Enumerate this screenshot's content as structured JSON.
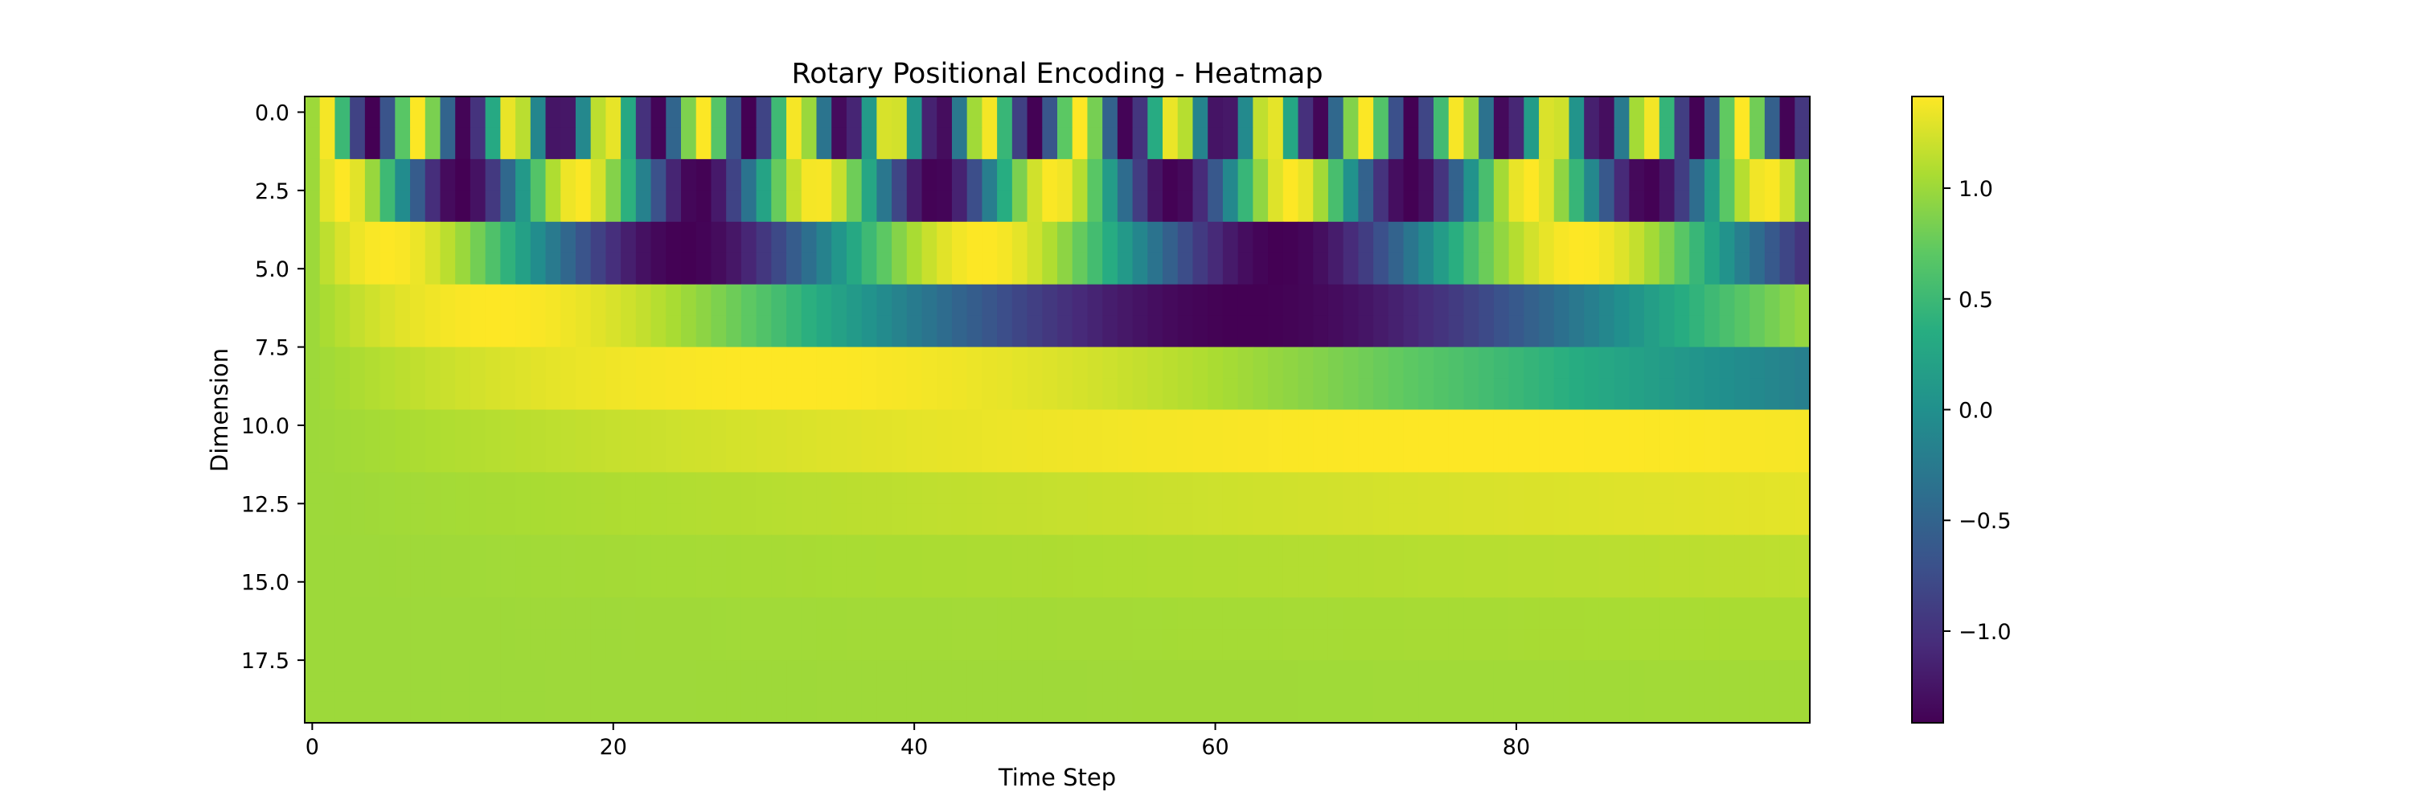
{
  "chart_data": {
    "type": "heatmap",
    "title": "Rotary Positional Encoding - Heatmap",
    "xlabel": "Time Step",
    "ylabel": "Dimension",
    "colormap": "viridis",
    "x_count": 100,
    "y_count": 20,
    "xlim": [
      -0.5,
      99.5
    ],
    "ylim": [
      19.5,
      -0.5
    ],
    "x_ticks": [
      0,
      20,
      40,
      60,
      80
    ],
    "x_tick_labels": [
      "0",
      "20",
      "40",
      "60",
      "80"
    ],
    "y_ticks": [
      0,
      2.5,
      5,
      7.5,
      10,
      12.5,
      15,
      17.5
    ],
    "y_tick_labels": [
      "0.0",
      "2.5",
      "5.0",
      "7.5",
      "10.0",
      "12.5",
      "15.0",
      "17.5"
    ],
    "color_range": [
      -1.414,
      1.414
    ],
    "colorbar_ticks": [
      1.0,
      0.5,
      0.0,
      -0.5,
      -1.0
    ],
    "colorbar_tick_labels": [
      "1.0",
      "0.5",
      "0.0",
      "−0.5",
      "−1.0"
    ],
    "value_model": {
      "rule": "value(t, d) = sin(t * f) + cos(t * f) with f = 10000^(-2*floor(d/2)/20), t = time step 0..99, d = dimension 0..19",
      "base": 10000,
      "dim_model": 20
    },
    "grid": false,
    "legend": "colorbar-right"
  }
}
